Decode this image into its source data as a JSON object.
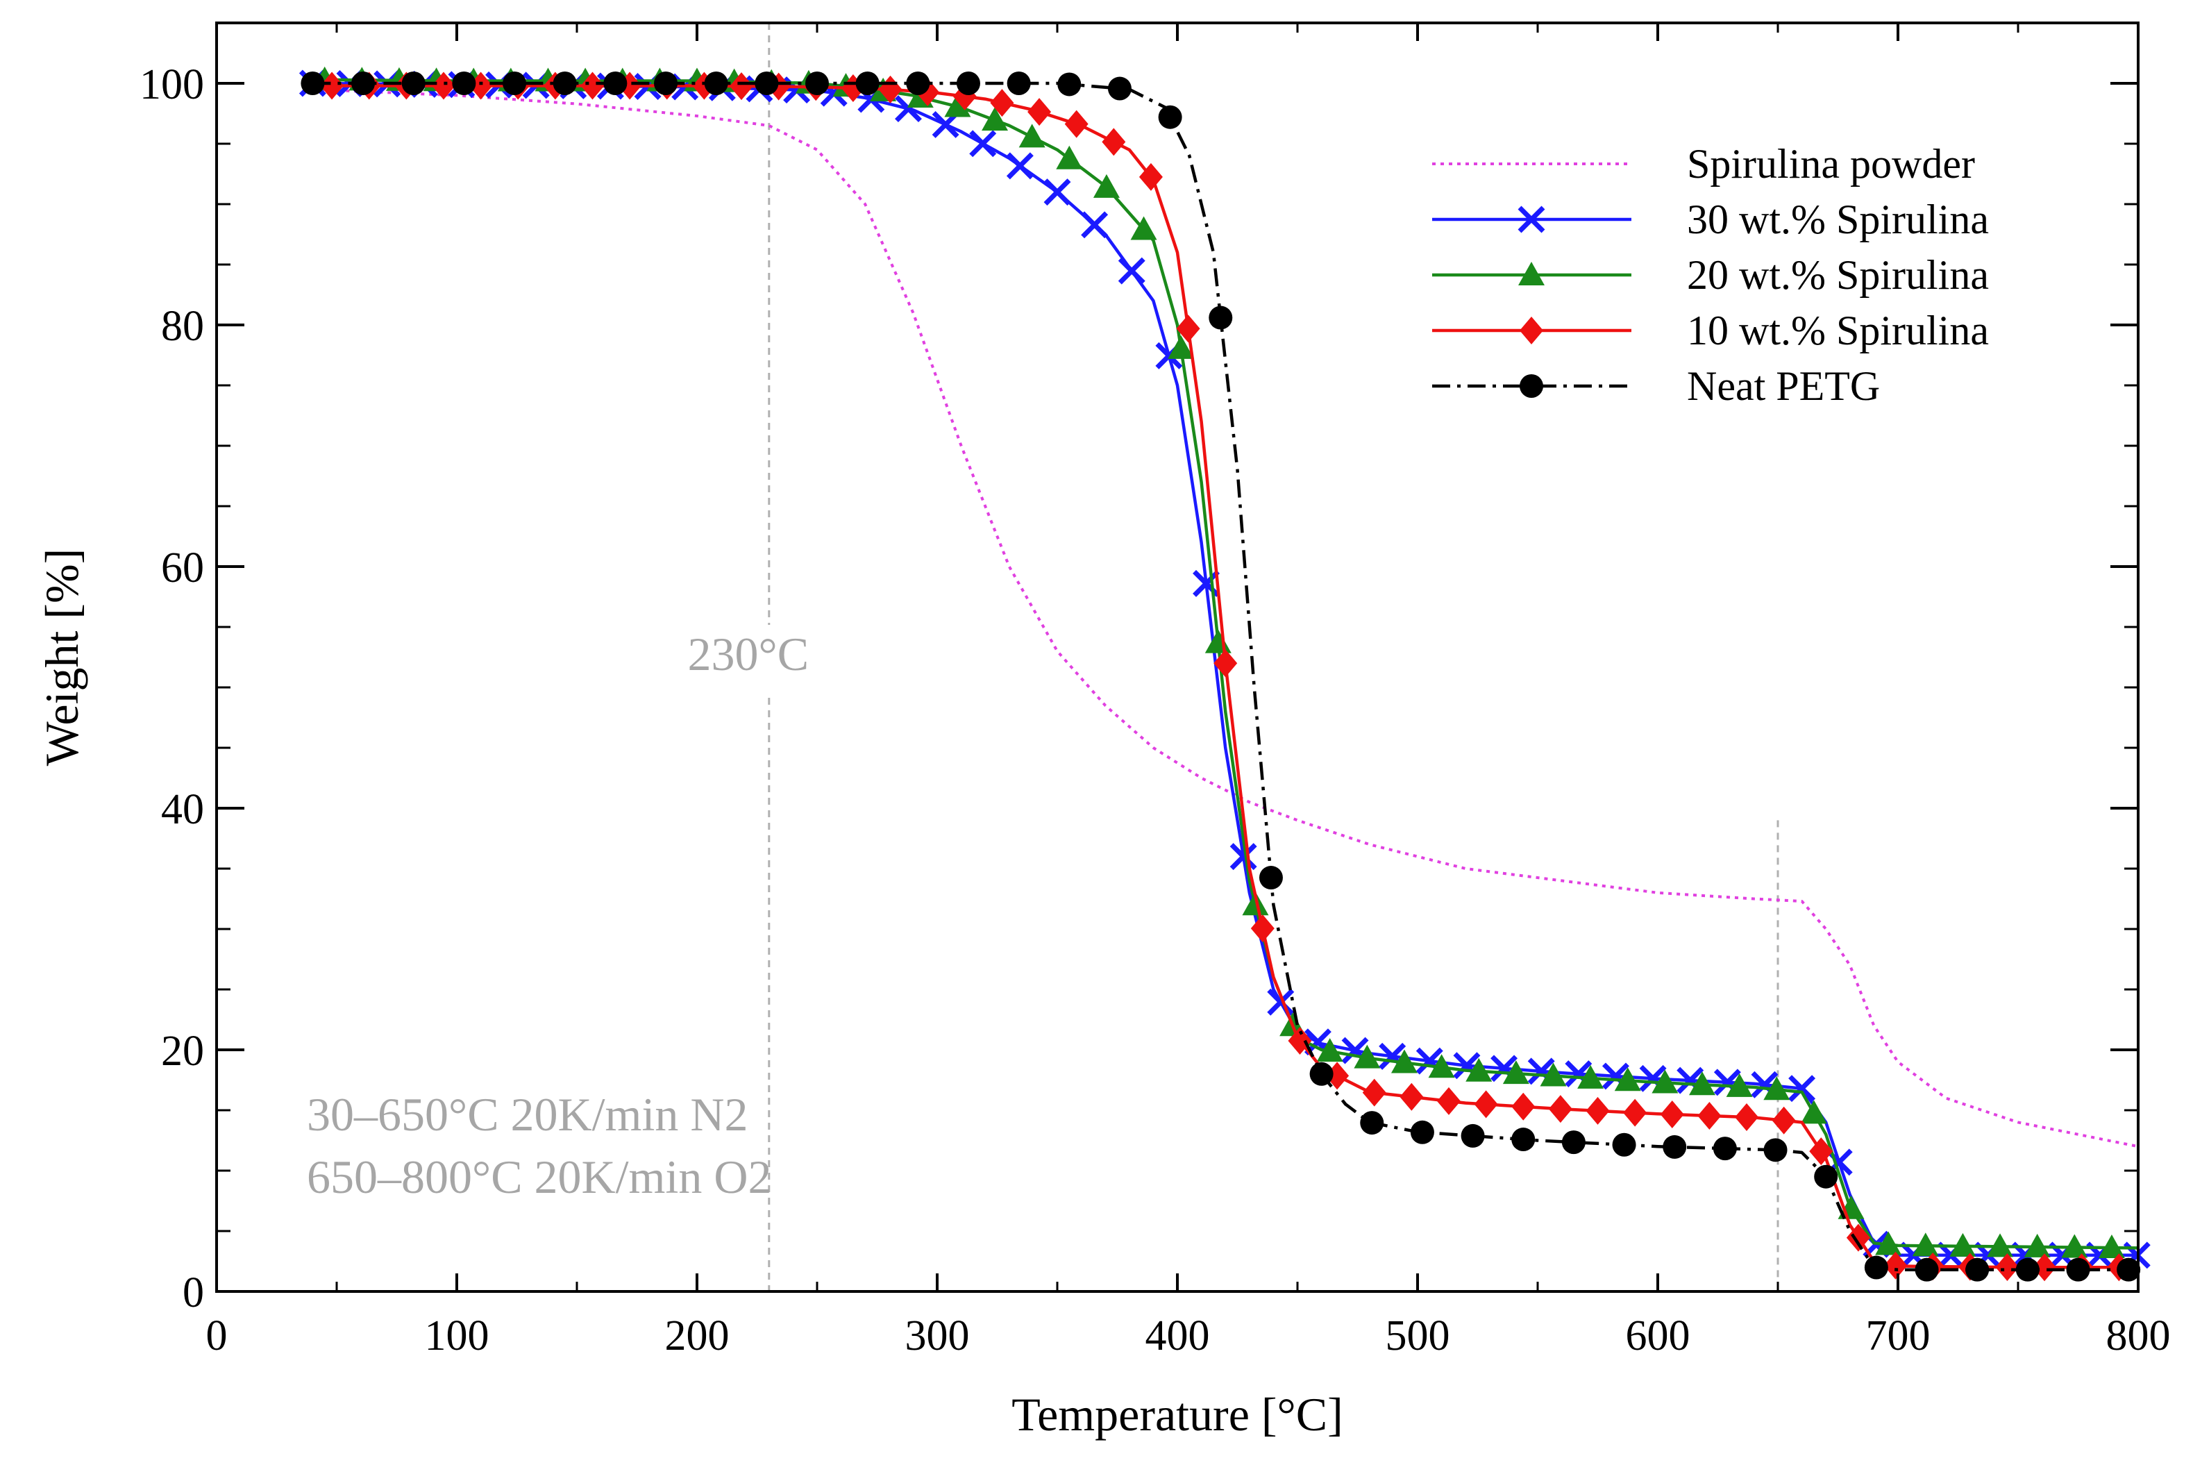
{
  "chart_data": {
    "type": "line",
    "xlabel": "Temperature [°C]",
    "ylabel": "Weight [%]",
    "xlim": [
      0,
      800
    ],
    "ylim": [
      0,
      105
    ],
    "xticks": [
      "0",
      "100",
      "200",
      "300",
      "400",
      "500",
      "600",
      "700",
      "800"
    ],
    "yticks": [
      "0",
      "20",
      "40",
      "60",
      "80",
      "100"
    ],
    "grid": false,
    "legend_position": "top-right",
    "annotations": {
      "vline_230": "230°C",
      "conditions_line1": "30–650°C 20K/min N2",
      "conditions_line2": "650–800°C 20K/min O2"
    },
    "reference_lines_x": [
      230,
      650
    ],
    "series": [
      {
        "name": "Spirulina powder",
        "color": "#e040e0",
        "line_style": "dotted",
        "marker": "none",
        "x": [
          40,
          100,
          150,
          200,
          230,
          250,
          270,
          290,
          310,
          330,
          350,
          370,
          390,
          410,
          430,
          450,
          480,
          520,
          560,
          600,
          640,
          660,
          670,
          680,
          690,
          700,
          720,
          750,
          780,
          800
        ],
        "y": [
          99.5,
          99,
          98.3,
          97.3,
          96.5,
          94.5,
          90,
          81,
          70,
          60,
          53,
          48.5,
          45,
          42.5,
          40.5,
          39,
          37,
          35,
          34,
          33,
          32.5,
          32.3,
          30,
          27,
          22,
          19,
          16,
          14,
          12.8,
          12
        ]
      },
      {
        "name": "30 wt.% Spirulina",
        "color": "#1a1aff",
        "line_style": "solid",
        "marker": "x",
        "x": [
          40,
          100,
          150,
          200,
          250,
          270,
          290,
          310,
          330,
          350,
          370,
          390,
          400,
          410,
          420,
          430,
          440,
          450,
          460,
          480,
          520,
          560,
          600,
          640,
          660,
          670,
          680,
          690,
          700,
          750,
          800
        ],
        "y": [
          100,
          99.9,
          99.8,
          99.7,
          99.4,
          98.8,
          97.8,
          96,
          93.8,
          91,
          87.5,
          82,
          75,
          62,
          45,
          33,
          25,
          21.5,
          20.5,
          19.7,
          18.7,
          18.1,
          17.6,
          17.2,
          16.8,
          14,
          8,
          4,
          3,
          3,
          3
        ]
      },
      {
        "name": "20 wt.% Spirulina",
        "color": "#1a8a1a",
        "line_style": "solid",
        "marker": "triangle",
        "x": [
          40,
          100,
          150,
          200,
          250,
          270,
          290,
          310,
          330,
          350,
          370,
          390,
          400,
          410,
          420,
          430,
          440,
          450,
          460,
          480,
          520,
          560,
          600,
          640,
          660,
          670,
          680,
          690,
          700,
          750,
          800
        ],
        "y": [
          100.3,
          100.2,
          100.2,
          100.2,
          100,
          99.6,
          99,
          98,
          96.5,
          94.5,
          91.5,
          87,
          80,
          67,
          48,
          34,
          26,
          21,
          20,
          19.3,
          18.3,
          17.8,
          17.3,
          16.9,
          16.5,
          13,
          7,
          4,
          3.8,
          3.7,
          3.6
        ]
      },
      {
        "name": "10 wt.% Spirulina",
        "color": "#ee1111",
        "line_style": "solid",
        "marker": "diamond",
        "x": [
          40,
          100,
          150,
          200,
          250,
          280,
          300,
          320,
          340,
          360,
          380,
          390,
          400,
          410,
          420,
          430,
          440,
          450,
          460,
          480,
          520,
          560,
          600,
          640,
          660,
          670,
          680,
          690,
          700,
          750,
          800
        ],
        "y": [
          99.8,
          99.8,
          99.8,
          99.8,
          99.7,
          99.5,
          99.2,
          98.7,
          97.8,
          96.5,
          94.5,
          92,
          86,
          72,
          52,
          35,
          26,
          21,
          18.5,
          16.5,
          15.6,
          15.1,
          14.7,
          14.4,
          14,
          11,
          5.5,
          2.5,
          2.1,
          2,
          2
        ]
      },
      {
        "name": "Neat PETG",
        "color": "#000000",
        "line_style": "dashdot",
        "marker": "circle",
        "x": [
          40,
          100,
          200,
          300,
          350,
          380,
          395,
          405,
          415,
          425,
          432,
          440,
          450,
          460,
          470,
          480,
          500,
          550,
          600,
          650,
          660,
          670,
          680,
          690,
          700,
          750,
          800
        ],
        "y": [
          100,
          100,
          100,
          100,
          100,
          99.5,
          98,
          94,
          86,
          68,
          50,
          32,
          22,
          18,
          15.5,
          14,
          13.2,
          12.5,
          12,
          11.7,
          11.5,
          9.5,
          5,
          2,
          1.8,
          1.8,
          1.8
        ]
      }
    ]
  }
}
